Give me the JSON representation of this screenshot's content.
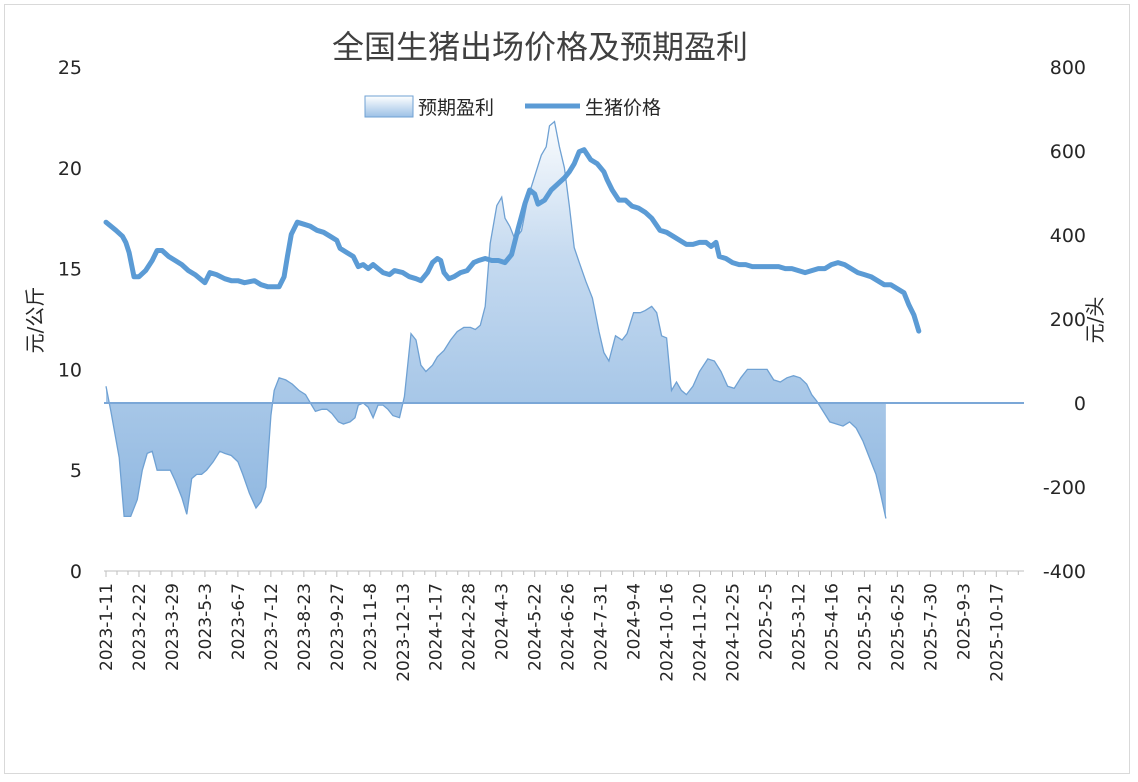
{
  "chart_data": {
    "type": "line",
    "title": "全国生猪出场价格及预期盈利",
    "ylabel_left": "元/公斤",
    "ylabel_right": "元/头",
    "ylim_left": [
      0,
      25
    ],
    "ylim_right": [
      -400,
      800
    ],
    "yticks_left": [
      "0",
      "5",
      "10",
      "15",
      "20",
      "25"
    ],
    "yticks_right": [
      "-400",
      "-200",
      "0",
      "200",
      "400",
      "600",
      "800"
    ],
    "legend": {
      "position": "top-center",
      "entries": [
        "预期盈利",
        "生猪价格"
      ]
    },
    "colors": {
      "price_line": "#5b9bd5",
      "profit_fill_top": "#c9dcf0",
      "profit_fill_bottom": "#eaf1fa",
      "profit_edge": "#6fa1d3"
    },
    "x_tick_labels": [
      "2023-1-11",
      "2023-2-22",
      "2023-3-29",
      "2023-5-3",
      "2023-6-7",
      "2023-7-12",
      "2023-8-23",
      "2023-9-27",
      "2023-11-8",
      "2023-12-13",
      "2024-1-17",
      "2024-2-28",
      "2024-4-3",
      "2024-5-22",
      "2024-6-26",
      "2024-7-31",
      "2024-9-4",
      "2024-10-16",
      "2024-11-20",
      "2024-12-25",
      "2025-2-5",
      "2025-3-12",
      "2025-4-16",
      "2025-5-21",
      "2025-6-25",
      "2025-7-30",
      "2025-9-3",
      "2025-10-17"
    ],
    "series": [
      {
        "name": "生猪价格",
        "axis": "left",
        "type": "line",
        "values": [
          [
            0,
            17.3
          ],
          [
            0.3,
            16.9
          ],
          [
            0.5,
            16.6
          ],
          [
            0.6,
            16.3
          ],
          [
            0.7,
            15.8
          ],
          [
            0.85,
            14.6
          ],
          [
            1.0,
            14.6
          ],
          [
            1.2,
            14.9
          ],
          [
            1.4,
            15.4
          ],
          [
            1.55,
            15.9
          ],
          [
            1.7,
            15.9
          ],
          [
            1.9,
            15.6
          ],
          [
            2.1,
            15.4
          ],
          [
            2.3,
            15.2
          ],
          [
            2.5,
            14.9
          ],
          [
            2.7,
            14.7
          ],
          [
            2.85,
            14.5
          ],
          [
            3.0,
            14.3
          ],
          [
            3.15,
            14.8
          ],
          [
            3.35,
            14.7
          ],
          [
            3.6,
            14.5
          ],
          [
            3.8,
            14.4
          ],
          [
            4.0,
            14.4
          ],
          [
            4.2,
            14.3
          ],
          [
            4.5,
            14.4
          ],
          [
            4.7,
            14.2
          ],
          [
            4.9,
            14.1
          ],
          [
            5.1,
            14.1
          ],
          [
            5.25,
            14.1
          ],
          [
            5.4,
            14.6
          ],
          [
            5.5,
            15.6
          ],
          [
            5.62,
            16.7
          ],
          [
            5.8,
            17.3
          ],
          [
            6.0,
            17.2
          ],
          [
            6.2,
            17.1
          ],
          [
            6.4,
            16.9
          ],
          [
            6.6,
            16.8
          ],
          [
            6.8,
            16.6
          ],
          [
            7.0,
            16.4
          ],
          [
            7.1,
            16.0
          ],
          [
            7.3,
            15.8
          ],
          [
            7.5,
            15.6
          ],
          [
            7.65,
            15.1
          ],
          [
            7.8,
            15.2
          ],
          [
            7.95,
            15.0
          ],
          [
            8.1,
            15.2
          ],
          [
            8.25,
            15.0
          ],
          [
            8.4,
            14.8
          ],
          [
            8.6,
            14.7
          ],
          [
            8.75,
            14.9
          ],
          [
            9.0,
            14.8
          ],
          [
            9.2,
            14.6
          ],
          [
            9.4,
            14.5
          ],
          [
            9.55,
            14.4
          ],
          [
            9.75,
            14.8
          ],
          [
            9.9,
            15.3
          ],
          [
            10.05,
            15.5
          ],
          [
            10.15,
            15.4
          ],
          [
            10.25,
            14.8
          ],
          [
            10.4,
            14.5
          ],
          [
            10.55,
            14.6
          ],
          [
            10.75,
            14.8
          ],
          [
            10.95,
            14.9
          ],
          [
            11.15,
            15.3
          ],
          [
            11.3,
            15.4
          ],
          [
            11.5,
            15.5
          ],
          [
            11.7,
            15.4
          ],
          [
            11.9,
            15.4
          ],
          [
            12.1,
            15.3
          ],
          [
            12.3,
            15.7
          ],
          [
            12.5,
            17.0
          ],
          [
            12.7,
            18.2
          ],
          [
            12.85,
            18.9
          ],
          [
            13.0,
            18.7
          ],
          [
            13.1,
            18.2
          ],
          [
            13.3,
            18.4
          ],
          [
            13.5,
            18.9
          ],
          [
            13.7,
            19.2
          ],
          [
            13.9,
            19.5
          ],
          [
            14.05,
            19.8
          ],
          [
            14.2,
            20.2
          ],
          [
            14.35,
            20.8
          ],
          [
            14.5,
            20.9
          ],
          [
            14.7,
            20.4
          ],
          [
            14.9,
            20.2
          ],
          [
            15.1,
            19.8
          ],
          [
            15.2,
            19.4
          ],
          [
            15.35,
            18.9
          ],
          [
            15.55,
            18.4
          ],
          [
            15.75,
            18.4
          ],
          [
            15.95,
            18.1
          ],
          [
            16.15,
            18.0
          ],
          [
            16.35,
            17.8
          ],
          [
            16.55,
            17.5
          ],
          [
            16.8,
            16.9
          ],
          [
            17.0,
            16.8
          ],
          [
            17.2,
            16.6
          ],
          [
            17.4,
            16.4
          ],
          [
            17.6,
            16.2
          ],
          [
            17.8,
            16.2
          ],
          [
            18.0,
            16.3
          ],
          [
            18.2,
            16.3
          ],
          [
            18.35,
            16.1
          ],
          [
            18.5,
            16.3
          ],
          [
            18.6,
            15.6
          ],
          [
            18.8,
            15.5
          ],
          [
            19.0,
            15.3
          ],
          [
            19.2,
            15.2
          ],
          [
            19.4,
            15.2
          ],
          [
            19.6,
            15.1
          ],
          [
            19.8,
            15.1
          ],
          [
            20.0,
            15.1
          ],
          [
            20.2,
            15.1
          ],
          [
            20.4,
            15.1
          ],
          [
            20.6,
            15.0
          ],
          [
            20.8,
            15.0
          ],
          [
            21.0,
            14.9
          ],
          [
            21.2,
            14.8
          ],
          [
            21.4,
            14.9
          ],
          [
            21.6,
            15.0
          ],
          [
            21.8,
            15.0
          ],
          [
            22.0,
            15.2
          ],
          [
            22.2,
            15.3
          ],
          [
            22.4,
            15.2
          ],
          [
            22.6,
            15.0
          ],
          [
            22.8,
            14.8
          ],
          [
            23.0,
            14.7
          ],
          [
            23.2,
            14.6
          ],
          [
            23.4,
            14.4
          ],
          [
            23.6,
            14.2
          ],
          [
            23.8,
            14.2
          ],
          [
            24.0,
            14.0
          ],
          [
            24.2,
            13.8
          ],
          [
            24.35,
            13.2
          ],
          [
            24.5,
            12.7
          ],
          [
            24.65,
            11.9
          ]
        ]
      },
      {
        "name": "预期盈利",
        "axis": "right",
        "type": "area",
        "values": [
          [
            0,
            40
          ],
          [
            0.15,
            -20
          ],
          [
            0.4,
            -130
          ],
          [
            0.55,
            -270
          ],
          [
            0.75,
            -270
          ],
          [
            0.95,
            -230
          ],
          [
            1.1,
            -160
          ],
          [
            1.25,
            -120
          ],
          [
            1.4,
            -115
          ],
          [
            1.55,
            -160
          ],
          [
            1.75,
            -160
          ],
          [
            1.95,
            -160
          ],
          [
            2.1,
            -185
          ],
          [
            2.3,
            -225
          ],
          [
            2.45,
            -265
          ],
          [
            2.6,
            -180
          ],
          [
            2.75,
            -170
          ],
          [
            2.9,
            -170
          ],
          [
            3.05,
            -160
          ],
          [
            3.25,
            -140
          ],
          [
            3.45,
            -115
          ],
          [
            3.6,
            -120
          ],
          [
            3.8,
            -125
          ],
          [
            4.0,
            -140
          ],
          [
            4.15,
            -170
          ],
          [
            4.35,
            -215
          ],
          [
            4.55,
            -250
          ],
          [
            4.7,
            -235
          ],
          [
            4.85,
            -200
          ],
          [
            5.0,
            -30
          ],
          [
            5.1,
            30
          ],
          [
            5.25,
            60
          ],
          [
            5.45,
            55
          ],
          [
            5.65,
            45
          ],
          [
            5.85,
            30
          ],
          [
            6.05,
            20
          ],
          [
            6.2,
            0
          ],
          [
            6.35,
            -20
          ],
          [
            6.55,
            -15
          ],
          [
            6.7,
            -15
          ],
          [
            6.85,
            -25
          ],
          [
            7.05,
            -45
          ],
          [
            7.2,
            -50
          ],
          [
            7.4,
            -45
          ],
          [
            7.55,
            -35
          ],
          [
            7.65,
            -5
          ],
          [
            7.8,
            0
          ],
          [
            7.95,
            -10
          ],
          [
            8.1,
            -35
          ],
          [
            8.25,
            -5
          ],
          [
            8.4,
            -5
          ],
          [
            8.55,
            -15
          ],
          [
            8.7,
            -30
          ],
          [
            8.9,
            -35
          ],
          [
            9.05,
            15
          ],
          [
            9.25,
            165
          ],
          [
            9.4,
            150
          ],
          [
            9.55,
            90
          ],
          [
            9.7,
            75
          ],
          [
            9.9,
            90
          ],
          [
            10.05,
            110
          ],
          [
            10.25,
            125
          ],
          [
            10.45,
            150
          ],
          [
            10.65,
            170
          ],
          [
            10.85,
            180
          ],
          [
            11.05,
            180
          ],
          [
            11.2,
            175
          ],
          [
            11.35,
            185
          ],
          [
            11.5,
            230
          ],
          [
            11.65,
            380
          ],
          [
            11.85,
            470
          ],
          [
            12.0,
            490
          ],
          [
            12.1,
            440
          ],
          [
            12.25,
            420
          ],
          [
            12.4,
            390
          ],
          [
            12.6,
            410
          ],
          [
            12.8,
            490
          ],
          [
            13.0,
            540
          ],
          [
            13.2,
            590
          ],
          [
            13.35,
            610
          ],
          [
            13.45,
            660
          ],
          [
            13.6,
            670
          ],
          [
            13.75,
            610
          ],
          [
            13.9,
            560
          ],
          [
            14.05,
            470
          ],
          [
            14.2,
            370
          ],
          [
            14.35,
            335
          ],
          [
            14.55,
            290
          ],
          [
            14.75,
            250
          ],
          [
            14.95,
            170
          ],
          [
            15.1,
            120
          ],
          [
            15.25,
            100
          ],
          [
            15.45,
            160
          ],
          [
            15.65,
            150
          ],
          [
            15.8,
            165
          ],
          [
            16.0,
            215
          ],
          [
            16.2,
            215
          ],
          [
            16.35,
            220
          ],
          [
            16.55,
            230
          ],
          [
            16.7,
            215
          ],
          [
            16.85,
            160
          ],
          [
            17.0,
            155
          ],
          [
            17.15,
            30
          ],
          [
            17.3,
            50
          ],
          [
            17.45,
            30
          ],
          [
            17.6,
            20
          ],
          [
            17.8,
            40
          ],
          [
            18.0,
            75
          ],
          [
            18.25,
            105
          ],
          [
            18.45,
            100
          ],
          [
            18.65,
            75
          ],
          [
            18.85,
            40
          ],
          [
            19.05,
            35
          ],
          [
            19.25,
            60
          ],
          [
            19.45,
            80
          ],
          [
            19.65,
            80
          ],
          [
            19.85,
            80
          ],
          [
            20.05,
            80
          ],
          [
            20.25,
            55
          ],
          [
            20.45,
            50
          ],
          [
            20.65,
            60
          ],
          [
            20.85,
            65
          ],
          [
            21.05,
            60
          ],
          [
            21.25,
            45
          ],
          [
            21.4,
            20
          ],
          [
            21.55,
            5
          ],
          [
            21.75,
            -20
          ],
          [
            21.95,
            -45
          ],
          [
            22.15,
            -50
          ],
          [
            22.35,
            -55
          ],
          [
            22.55,
            -45
          ],
          [
            22.75,
            -60
          ],
          [
            22.95,
            -90
          ],
          [
            23.15,
            -130
          ],
          [
            23.35,
            -170
          ],
          [
            23.5,
            -220
          ],
          [
            23.65,
            -275
          ]
        ]
      }
    ]
  }
}
